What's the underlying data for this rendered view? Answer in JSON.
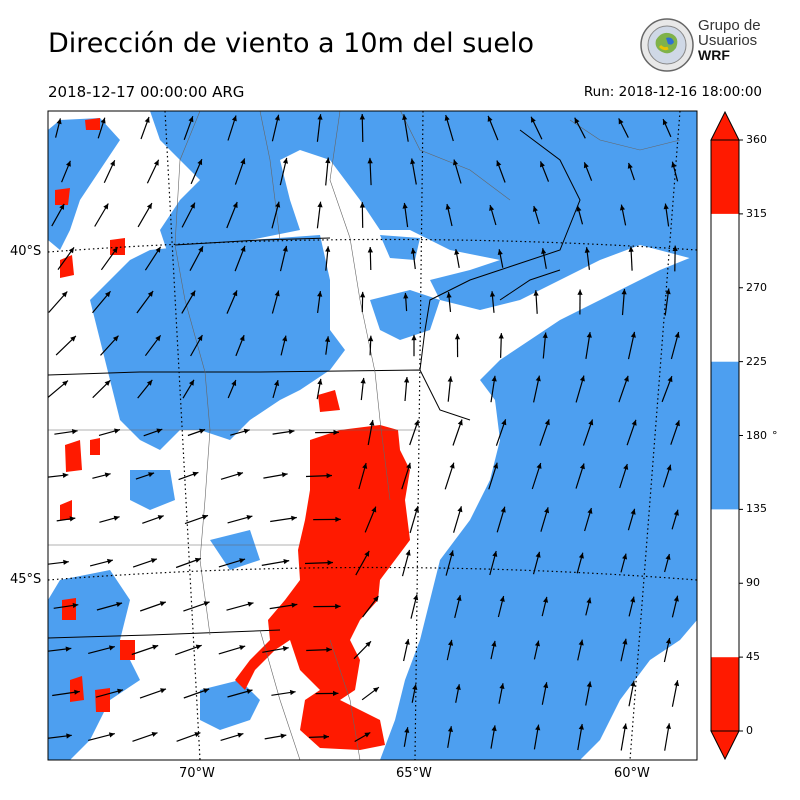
{
  "header": {
    "title": "Dirección de viento a 10m del suelo",
    "valid_time": "2018-12-17 00:00:00 ARG",
    "run_time": "Run: 2018-12-16 18:00:00"
  },
  "logo": {
    "line1": "Grupo de",
    "line2": "Usuarios",
    "line3": "WRF"
  },
  "map": {
    "lat_labels": [
      "40°S",
      "45°S"
    ],
    "lon_labels": [
      "70°W",
      "65°W",
      "60°W"
    ],
    "colors": {
      "red": "#ff1a00",
      "blue": "#4d9ff0",
      "white": "#ffffff"
    }
  },
  "colorbar": {
    "ticks": [
      "0",
      "45",
      "90",
      "135",
      "180",
      "225",
      "270",
      "315",
      "360"
    ],
    "unit": "°",
    "bins": [
      {
        "from": 0,
        "to": 45,
        "color": "#ff1a00"
      },
      {
        "from": 45,
        "to": 135,
        "color": "#ffffff"
      },
      {
        "from": 135,
        "to": 225,
        "color": "#4d9ff0"
      },
      {
        "from": 225,
        "to": 315,
        "color": "#ffffff"
      },
      {
        "from": 315,
        "to": 360,
        "color": "#ff1a00"
      }
    ]
  }
}
